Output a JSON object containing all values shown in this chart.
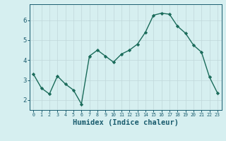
{
  "x": [
    0,
    1,
    2,
    3,
    4,
    5,
    6,
    7,
    8,
    9,
    10,
    11,
    12,
    13,
    14,
    15,
    16,
    17,
    18,
    19,
    20,
    21,
    22,
    23
  ],
  "y": [
    3.3,
    2.6,
    2.3,
    3.2,
    2.8,
    2.5,
    1.8,
    4.2,
    4.5,
    4.2,
    3.9,
    4.3,
    4.5,
    4.8,
    5.4,
    6.25,
    6.35,
    6.3,
    5.7,
    5.35,
    4.75,
    4.4,
    3.15,
    2.35
  ],
  "line_color": "#1a6b5a",
  "marker": "D",
  "marker_size": 2.2,
  "line_width": 1.0,
  "bg_color": "#d6eff0",
  "grid_color": "#c0d8da",
  "xlabel": "Humidex (Indice chaleur)",
  "xlabel_fontsize": 7.5,
  "xlabel_color": "#1a5c6e",
  "tick_color": "#1a5c6e",
  "ylim": [
    1.5,
    6.8
  ],
  "xlim": [
    -0.5,
    23.5
  ],
  "yticks": [
    2,
    3,
    4,
    5,
    6
  ],
  "xtick_labels": [
    "0",
    "1",
    "2",
    "3",
    "4",
    "5",
    "6",
    "7",
    "8",
    "9",
    "10",
    "11",
    "12",
    "13",
    "14",
    "15",
    "16",
    "17",
    "18",
    "19",
    "20",
    "21",
    "22",
    "23"
  ]
}
